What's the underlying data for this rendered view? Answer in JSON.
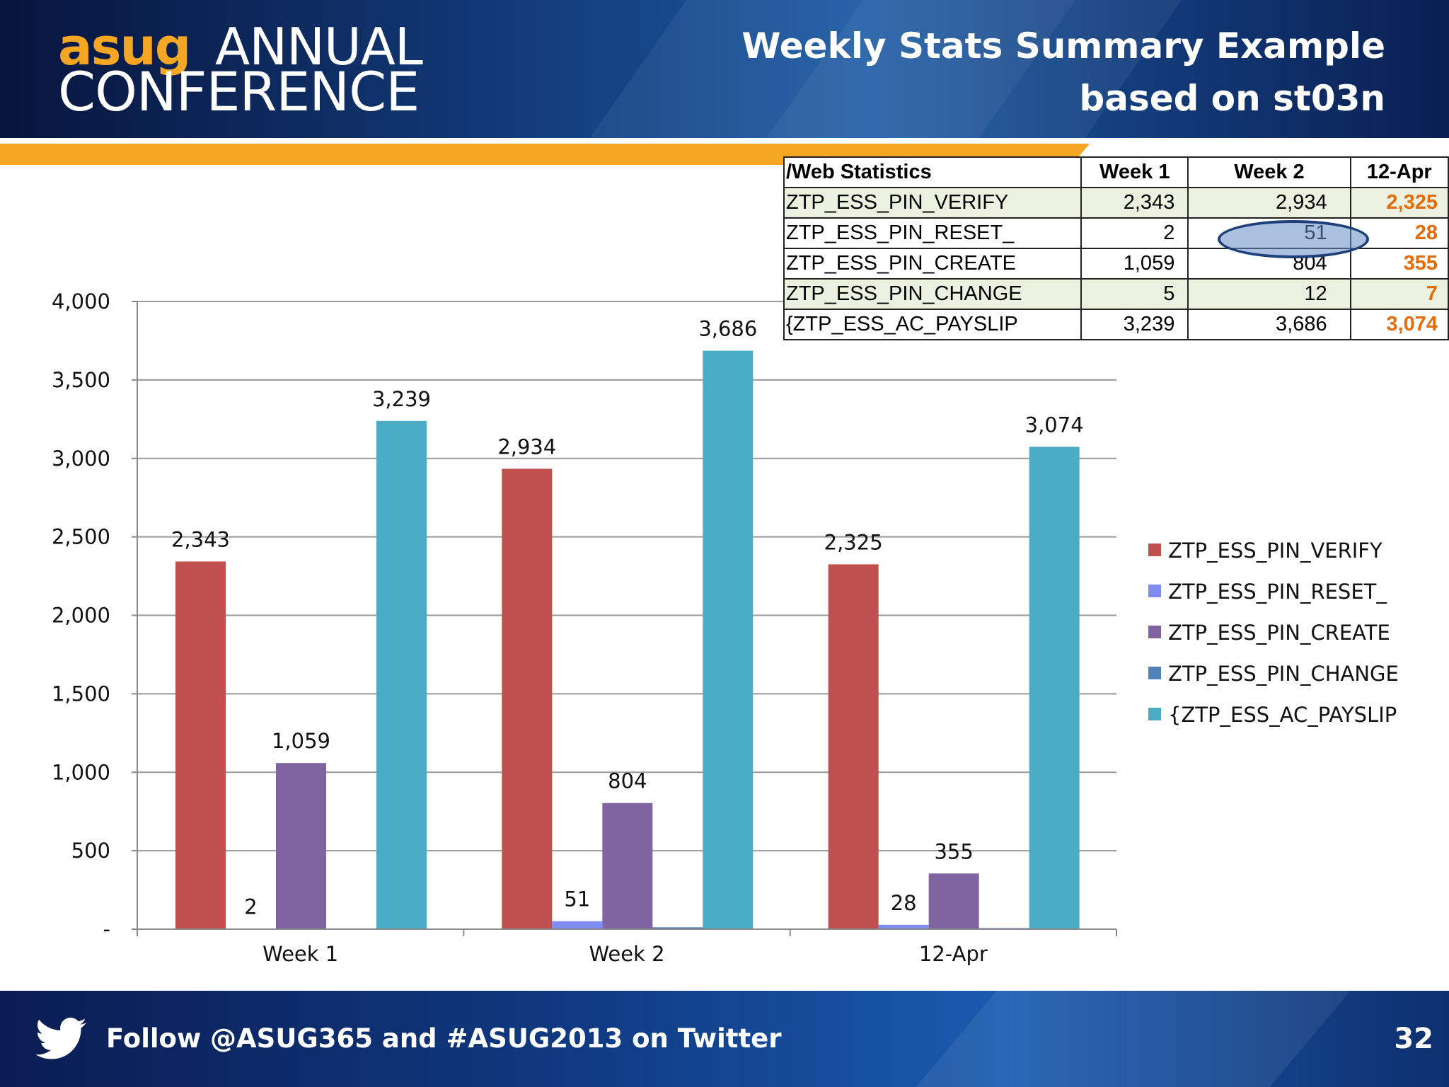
{
  "header": {
    "logo_asug": "asug",
    "logo_annual": "ANNUAL",
    "logo_conference": "CONFERENCE",
    "title_line1": "Weekly Stats Summary Example",
    "title_line2": "based on st03n"
  },
  "footer": {
    "follow_text": "Follow @ASUG365 and #ASUG2013 on Twitter",
    "page_number": "32",
    "icon": "twitter-bird-icon"
  },
  "colors": {
    "brand_orange": "#f5a623",
    "header_dark": "#07153d",
    "table_highlight_orange": "#e46c0a"
  },
  "table": {
    "headers": [
      "/Web Statistics",
      "Week 1",
      "Week 2",
      "12-Apr"
    ],
    "rows": [
      [
        "ZTP_ESS_PIN_VERIFY",
        "2,343",
        "2,934",
        "2,325"
      ],
      [
        "ZTP_ESS_PIN_RESET_",
        "2",
        "51",
        "28"
      ],
      [
        "ZTP_ESS_PIN_CREATE",
        "1,059",
        "804",
        "355"
      ],
      [
        "ZTP_ESS_PIN_CHANGE",
        "5",
        "12",
        "7"
      ],
      [
        "{ZTP_ESS_AC_PAYSLIP",
        "3,239",
        "3,686",
        "3,074"
      ]
    ]
  },
  "chart_data": {
    "type": "bar",
    "categories": [
      "Week 1",
      "Week 2",
      "12-Apr"
    ],
    "series": [
      {
        "name": "ZTP_ESS_PIN_VERIFY",
        "values": [
          2343,
          2934,
          2325
        ],
        "labels": [
          "2,343",
          "2,934",
          "2,325"
        ],
        "color": "#c0504d"
      },
      {
        "name": "ZTP_ESS_PIN_RESET_",
        "values": [
          2,
          51,
          28
        ],
        "labels": [
          "2",
          "51",
          "28"
        ],
        "color": "#7f8cf2"
      },
      {
        "name": "ZTP_ESS_PIN_CREATE",
        "values": [
          1059,
          804,
          355
        ],
        "labels": [
          "1,059",
          "804",
          "355"
        ],
        "color": "#8064a2"
      },
      {
        "name": "ZTP_ESS_PIN_CHANGE",
        "values": [
          5,
          12,
          7
        ],
        "labels": [
          "",
          "",
          ""
        ],
        "color": "#4f81bd"
      },
      {
        "name": "{ZTP_ESS_AC_PAYSLIP",
        "values": [
          3239,
          3686,
          3074
        ],
        "labels": [
          "3,239",
          "3,686",
          "3,074"
        ],
        "color": "#4bacc6"
      }
    ],
    "ylim": [
      0,
      4000
    ],
    "yticks": [
      0,
      500,
      1000,
      1500,
      2000,
      2500,
      3000,
      3500,
      4000
    ],
    "ytick_labels": [
      "-",
      "500",
      "1,000",
      "1,500",
      "2,000",
      "2,500",
      "3,000",
      "3,500",
      "4,000"
    ],
    "grid": true,
    "legend_position": "right"
  }
}
